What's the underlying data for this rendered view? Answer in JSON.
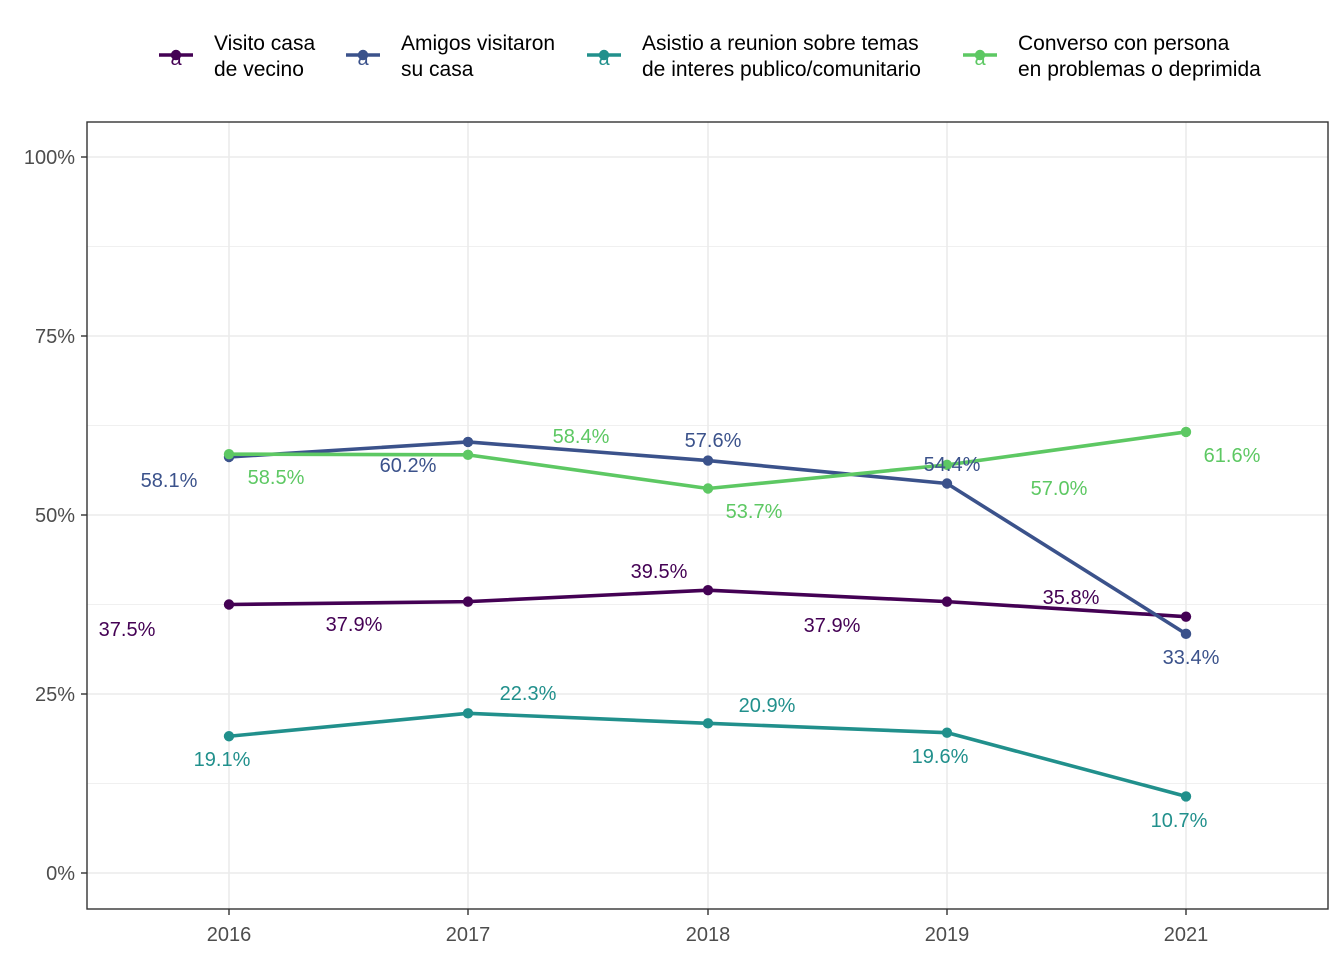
{
  "chart_data": {
    "type": "line",
    "categories": [
      "2016",
      "2017",
      "2018",
      "2019",
      "2021"
    ],
    "y_ticks": [
      "0%",
      "25%",
      "50%",
      "75%",
      "100%"
    ],
    "ylim": [
      0,
      100
    ],
    "grid": true,
    "legend_position": "top",
    "series": [
      {
        "name_lines": [
          "Visito casa",
          "de vecino"
        ],
        "color": "#440154",
        "values": [
          37.5,
          37.9,
          39.5,
          37.9,
          35.8
        ],
        "labels": [
          "37.5%",
          "37.9%",
          "39.5%",
          "37.9%",
          "35.8%"
        ]
      },
      {
        "name_lines": [
          "Amigos visitaron",
          "su casa"
        ],
        "color": "#3B528B",
        "values": [
          58.1,
          60.2,
          57.6,
          54.4,
          33.4
        ],
        "labels": [
          "58.1%",
          "60.2%",
          "57.6%",
          "54.4%",
          "33.4%"
        ]
      },
      {
        "name_lines": [
          "Asistio a reunion sobre temas",
          "de interes publico/comunitario"
        ],
        "color": "#21908C",
        "values": [
          19.1,
          22.3,
          20.9,
          19.6,
          10.7
        ],
        "labels": [
          "19.1%",
          "22.3%",
          "20.9%",
          "19.6%",
          "10.7%"
        ]
      },
      {
        "name_lines": [
          "Converso con persona",
          "en problemas o deprimida"
        ],
        "color": "#5DC863",
        "values": [
          58.5,
          58.4,
          53.7,
          57.0,
          61.6
        ],
        "labels": [
          "58.5%",
          "58.4%",
          "53.7%",
          "57.0%",
          "61.6%"
        ]
      }
    ]
  }
}
